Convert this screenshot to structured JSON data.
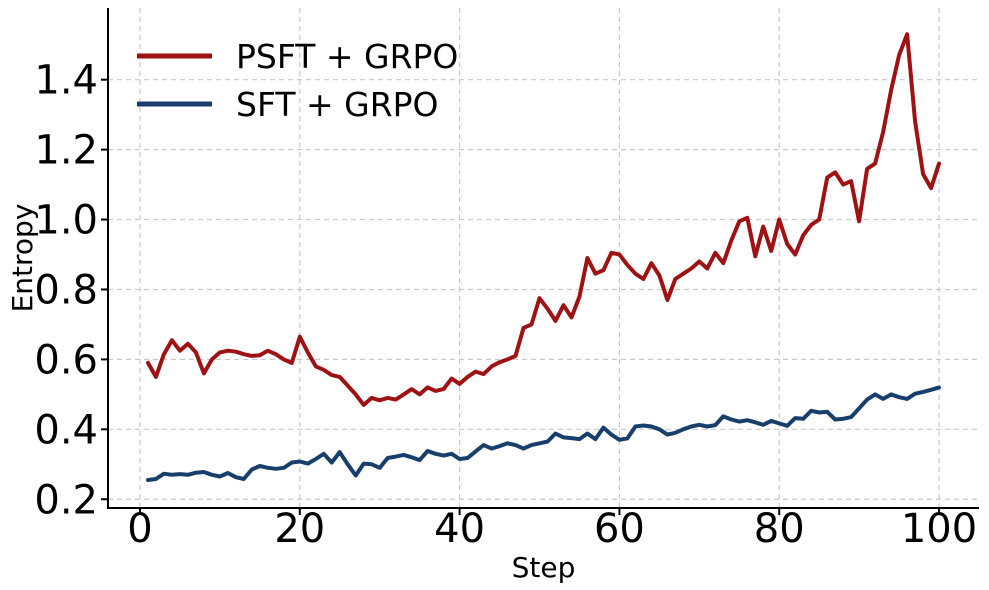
{
  "chart_data": {
    "type": "line",
    "title": "",
    "xlabel": "Step",
    "ylabel": "Entropy",
    "xlim": [
      -4.0,
      105.0
    ],
    "ylim": [
      0.175,
      1.605
    ],
    "xticks": [
      0,
      20,
      40,
      60,
      80,
      100
    ],
    "xtick_labels": [
      "0",
      "20",
      "40",
      "60",
      "80",
      "100"
    ],
    "yticks": [
      0.2,
      0.4,
      0.6,
      0.8,
      1.0,
      1.2,
      1.4
    ],
    "ytick_labels": [
      "0.2",
      "0.4",
      "0.6",
      "0.8",
      "1.0",
      "1.2",
      "1.4"
    ],
    "grid": true,
    "grid_style": "dashed",
    "legend_position": "upper-left",
    "x_start": 1,
    "x_step": 1,
    "series": [
      {
        "name": "PSFT + GRPO",
        "color": "#9F1214",
        "values": [
          0.59,
          0.55,
          0.615,
          0.655,
          0.625,
          0.645,
          0.62,
          0.56,
          0.6,
          0.62,
          0.625,
          0.622,
          0.615,
          0.61,
          0.612,
          0.625,
          0.615,
          0.6,
          0.59,
          0.665,
          0.62,
          0.58,
          0.57,
          0.555,
          0.55,
          0.525,
          0.5,
          0.47,
          0.49,
          0.483,
          0.49,
          0.485,
          0.5,
          0.515,
          0.5,
          0.52,
          0.51,
          0.515,
          0.545,
          0.53,
          0.55,
          0.565,
          0.558,
          0.58,
          0.592,
          0.6,
          0.61,
          0.69,
          0.7,
          0.775,
          0.745,
          0.71,
          0.755,
          0.72,
          0.78,
          0.89,
          0.845,
          0.855,
          0.905,
          0.9,
          0.87,
          0.845,
          0.83,
          0.875,
          0.84,
          0.77,
          0.83,
          0.845,
          0.86,
          0.88,
          0.86,
          0.905,
          0.875,
          0.94,
          0.995,
          1.005,
          0.895,
          0.98,
          0.91,
          1.0,
          0.93,
          0.9,
          0.955,
          0.985,
          1.0,
          1.12,
          1.135,
          1.1,
          1.11,
          0.995,
          1.145,
          1.16,
          1.25,
          1.37,
          1.47,
          1.53,
          1.28,
          1.13,
          1.09,
          1.16
        ]
      },
      {
        "name": "SFT + GRPO",
        "color": "#183F6C",
        "values": [
          0.255,
          0.258,
          0.273,
          0.27,
          0.272,
          0.27,
          0.276,
          0.278,
          0.27,
          0.265,
          0.275,
          0.263,
          0.258,
          0.285,
          0.295,
          0.29,
          0.287,
          0.29,
          0.305,
          0.308,
          0.302,
          0.315,
          0.33,
          0.305,
          0.335,
          0.3,
          0.268,
          0.302,
          0.3,
          0.29,
          0.318,
          0.322,
          0.327,
          0.32,
          0.312,
          0.338,
          0.33,
          0.325,
          0.33,
          0.315,
          0.318,
          0.337,
          0.355,
          0.345,
          0.352,
          0.36,
          0.355,
          0.345,
          0.355,
          0.36,
          0.365,
          0.388,
          0.377,
          0.375,
          0.372,
          0.388,
          0.372,
          0.405,
          0.385,
          0.37,
          0.374,
          0.408,
          0.411,
          0.408,
          0.4,
          0.385,
          0.39,
          0.4,
          0.408,
          0.413,
          0.408,
          0.412,
          0.437,
          0.428,
          0.422,
          0.426,
          0.42,
          0.413,
          0.424,
          0.417,
          0.41,
          0.432,
          0.43,
          0.453,
          0.448,
          0.45,
          0.428,
          0.43,
          0.435,
          0.46,
          0.485,
          0.5,
          0.487,
          0.5,
          0.492,
          0.487,
          0.502,
          0.507,
          0.513,
          0.52
        ]
      }
    ]
  },
  "colors": {
    "background": "#ffffff",
    "grid": "#c9c9c9",
    "spine": "#000000",
    "tick_label": "#000000",
    "axis_label": "#000000",
    "legend_text": "#000000"
  }
}
